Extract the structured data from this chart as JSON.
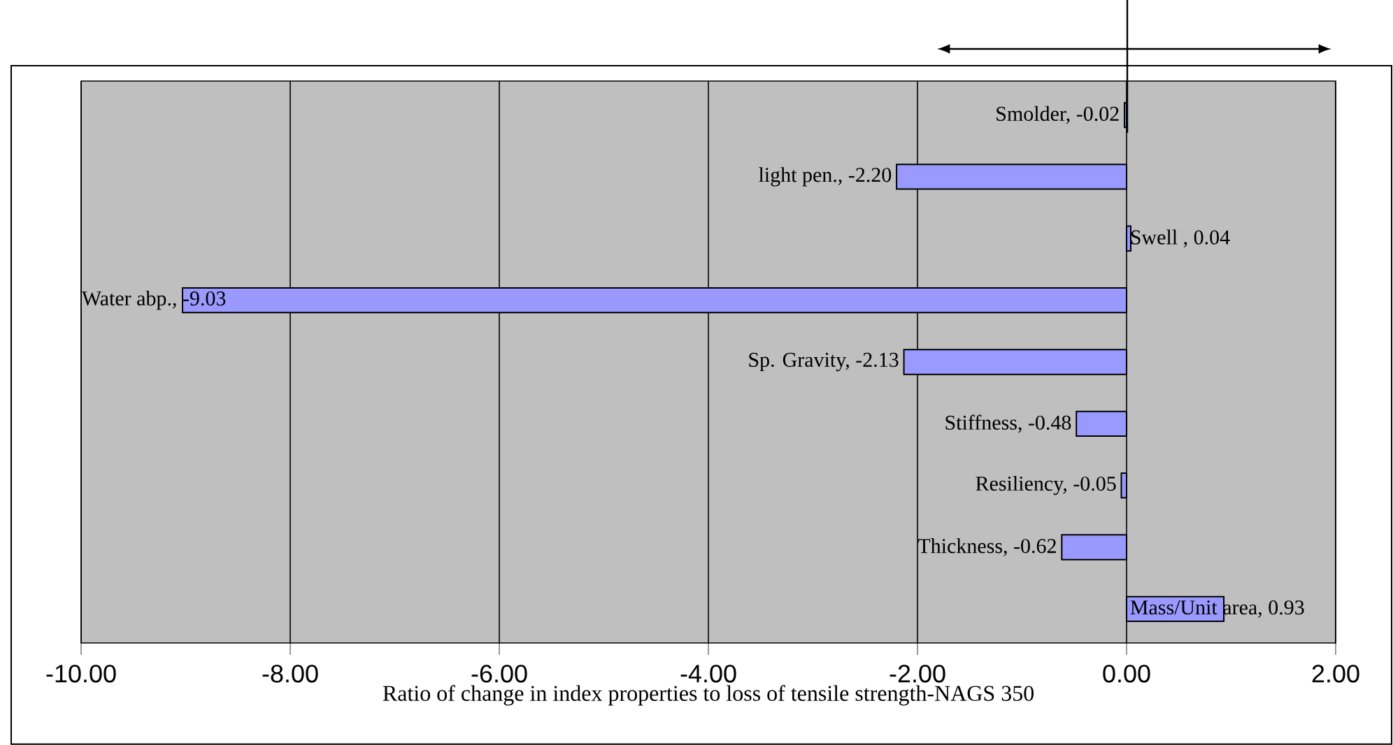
{
  "chart_data": {
    "type": "bar",
    "orientation": "horizontal",
    "xlabel": "Ratio of change in index properties to loss of tensile strength-NAGS 350",
    "categories": [
      null,
      null,
      null,
      null,
      null,
      null,
      null,
      null,
      null
    ],
    "values": [
      -0.02,
      -2.2,
      0.04,
      -9.03,
      -2.13,
      -0.48,
      -0.05,
      -0.62,
      0.93
    ],
    "value_labels": [
      "Smolder, -0.02",
      "light pen., -2.20",
      "Swell , 0.04",
      "Water abp., -9.03",
      "Sp. Gravity, -2.13",
      "Stiffness, -0.48",
      "Resiliency, -0.05",
      "Thickness, -0.62",
      "Mass/Unit area, 0.93"
    ],
    "color": "#9999ff",
    "xlim": [
      -10,
      2
    ],
    "xticks": [
      {
        "value": -10,
        "label": "-10.00"
      },
      {
        "value": -8,
        "label": "-8.00"
      },
      {
        "value": -6,
        "label": "-6.00"
      },
      {
        "value": -4,
        "label": "-4.00"
      },
      {
        "value": -2,
        "label": "-2.00"
      },
      {
        "value": 0,
        "label": "0.00"
      },
      {
        "value": 2,
        "label": "2.00"
      }
    ],
    "grid": "x",
    "tick_labels": "x"
  }
}
